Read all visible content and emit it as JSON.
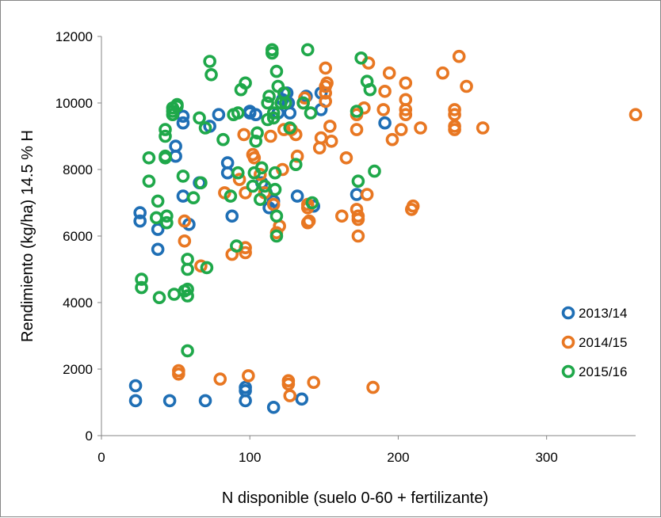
{
  "chart_data": {
    "type": "scatter",
    "title": "",
    "xlabel": "N disponible (suelo 0-60 + fertilizante)",
    "ylabel": "Rendimiento (kg/ha) 14.5 % H",
    "xlim": [
      0,
      360
    ],
    "ylim": [
      0,
      12000
    ],
    "xticks": [
      0,
      100,
      200,
      300
    ],
    "yticks": [
      0,
      2000,
      4000,
      6000,
      8000,
      10000,
      12000
    ],
    "grid": false,
    "legend_position": "bottom-right",
    "series": [
      {
        "name": "2013/14",
        "color": "#1f6fb5",
        "points": [
          [
            23,
            1500
          ],
          [
            23,
            1050
          ],
          [
            26,
            6700
          ],
          [
            26,
            6450
          ],
          [
            38,
            6200
          ],
          [
            38,
            5600
          ],
          [
            46,
            1050
          ],
          [
            50,
            8700
          ],
          [
            50,
            8400
          ],
          [
            55,
            9400
          ],
          [
            55,
            9600
          ],
          [
            55,
            7200
          ],
          [
            59,
            6350
          ],
          [
            66,
            7600
          ],
          [
            70,
            1050
          ],
          [
            73,
            9300
          ],
          [
            79,
            9650
          ],
          [
            85,
            8200
          ],
          [
            85,
            7900
          ],
          [
            88,
            6600
          ],
          [
            97,
            1450
          ],
          [
            97,
            1350
          ],
          [
            97,
            1050
          ],
          [
            100,
            9700
          ],
          [
            100,
            9750
          ],
          [
            104,
            9650
          ],
          [
            108,
            7600
          ],
          [
            111,
            7300
          ],
          [
            113,
            6850
          ],
          [
            116,
            850
          ],
          [
            116,
            7050
          ],
          [
            119,
            9700
          ],
          [
            122,
            10100
          ],
          [
            125,
            10300
          ],
          [
            126,
            10000
          ],
          [
            127,
            9700
          ],
          [
            132,
            7200
          ],
          [
            135,
            1100
          ],
          [
            138,
            10200
          ],
          [
            143,
            6900
          ],
          [
            148,
            10300
          ],
          [
            148,
            9800
          ],
          [
            172,
            7250
          ],
          [
            191,
            9400
          ]
        ]
      },
      {
        "name": "2014/15",
        "color": "#e87722",
        "points": [
          [
            52,
            1950
          ],
          [
            52,
            1850
          ],
          [
            56,
            6450
          ],
          [
            56,
            5850
          ],
          [
            67,
            5100
          ],
          [
            80,
            1700
          ],
          [
            83,
            7300
          ],
          [
            88,
            5450
          ],
          [
            93,
            7700
          ],
          [
            96,
            9050
          ],
          [
            97,
            5650
          ],
          [
            97,
            5500
          ],
          [
            97,
            7300
          ],
          [
            99,
            1800
          ],
          [
            102,
            8450
          ],
          [
            103,
            8350
          ],
          [
            107,
            7850
          ],
          [
            110,
            7300
          ],
          [
            114,
            9000
          ],
          [
            116,
            6950
          ],
          [
            118,
            6100
          ],
          [
            120,
            6300
          ],
          [
            122,
            8000
          ],
          [
            123,
            9200
          ],
          [
            126,
            1650
          ],
          [
            126,
            1550
          ],
          [
            127,
            1200
          ],
          [
            128,
            9200
          ],
          [
            131,
            9050
          ],
          [
            132,
            8400
          ],
          [
            136,
            10000
          ],
          [
            137,
            10150
          ],
          [
            139,
            6950
          ],
          [
            139,
            6850
          ],
          [
            139,
            6400
          ],
          [
            140,
            6450
          ],
          [
            143,
            1600
          ],
          [
            147,
            8650
          ],
          [
            148,
            8950
          ],
          [
            151,
            11050
          ],
          [
            151,
            10500
          ],
          [
            151,
            10300
          ],
          [
            151,
            10050
          ],
          [
            152,
            10600
          ],
          [
            154,
            9300
          ],
          [
            155,
            8850
          ],
          [
            162,
            6600
          ],
          [
            165,
            8350
          ],
          [
            172,
            9200
          ],
          [
            172,
            9650
          ],
          [
            172,
            6800
          ],
          [
            173,
            6600
          ],
          [
            173,
            6500
          ],
          [
            173,
            6000
          ],
          [
            177,
            9850
          ],
          [
            179,
            7250
          ],
          [
            180,
            11200
          ],
          [
            183,
            1450
          ],
          [
            190,
            9800
          ],
          [
            191,
            10350
          ],
          [
            194,
            10900
          ],
          [
            196,
            8900
          ],
          [
            202,
            9200
          ],
          [
            205,
            10600
          ],
          [
            205,
            10100
          ],
          [
            205,
            9800
          ],
          [
            205,
            9650
          ],
          [
            209,
            6800
          ],
          [
            210,
            6900
          ],
          [
            215,
            9250
          ],
          [
            230,
            10900
          ],
          [
            238,
            9800
          ],
          [
            238,
            9650
          ],
          [
            238,
            9300
          ],
          [
            238,
            9200
          ],
          [
            241,
            11400
          ],
          [
            246,
            10500
          ],
          [
            257,
            9250
          ],
          [
            360,
            9650
          ]
        ]
      },
      {
        "name": "2015/16",
        "color": "#1fa84a",
        "points": [
          [
            27,
            4700
          ],
          [
            27,
            4450
          ],
          [
            32,
            8350
          ],
          [
            32,
            7650
          ],
          [
            37,
            6550
          ],
          [
            38,
            7050
          ],
          [
            39,
            4150
          ],
          [
            43,
            9200
          ],
          [
            43,
            9000
          ],
          [
            43,
            8400
          ],
          [
            43,
            8350
          ],
          [
            44,
            6600
          ],
          [
            44,
            6400
          ],
          [
            48,
            9750
          ],
          [
            48,
            9850
          ],
          [
            48,
            9650
          ],
          [
            49,
            4250
          ],
          [
            51,
            9900
          ],
          [
            51,
            9950
          ],
          [
            55,
            7800
          ],
          [
            56,
            4350
          ],
          [
            58,
            5300
          ],
          [
            58,
            5000
          ],
          [
            58,
            4400
          ],
          [
            58,
            4200
          ],
          [
            58,
            2550
          ],
          [
            62,
            7150
          ],
          [
            66,
            9550
          ],
          [
            67,
            7600
          ],
          [
            70,
            9250
          ],
          [
            71,
            5050
          ],
          [
            73,
            11250
          ],
          [
            74,
            10850
          ],
          [
            82,
            8900
          ],
          [
            87,
            7200
          ],
          [
            89,
            9650
          ],
          [
            91,
            5700
          ],
          [
            92,
            9700
          ],
          [
            92,
            7900
          ],
          [
            94,
            10400
          ],
          [
            97,
            10600
          ],
          [
            102,
            7500
          ],
          [
            103,
            7900
          ],
          [
            104,
            8850
          ],
          [
            105,
            9100
          ],
          [
            107,
            7100
          ],
          [
            108,
            8050
          ],
          [
            110,
            7500
          ],
          [
            112,
            9500
          ],
          [
            112,
            10000
          ],
          [
            113,
            10200
          ],
          [
            115,
            11600
          ],
          [
            115,
            11500
          ],
          [
            116,
            9700
          ],
          [
            116,
            9550
          ],
          [
            117,
            7900
          ],
          [
            117,
            7400
          ],
          [
            118,
            6600
          ],
          [
            118,
            6000
          ],
          [
            118,
            10950
          ],
          [
            119,
            10500
          ],
          [
            121,
            10000
          ],
          [
            123,
            10300
          ],
          [
            124,
            10000
          ],
          [
            127,
            9250
          ],
          [
            131,
            8150
          ],
          [
            136,
            10000
          ],
          [
            139,
            11600
          ],
          [
            141,
            9700
          ],
          [
            142,
            7000
          ],
          [
            172,
            9750
          ],
          [
            173,
            7650
          ],
          [
            175,
            11350
          ],
          [
            179,
            10650
          ],
          [
            181,
            10400
          ],
          [
            184,
            7950
          ]
        ]
      }
    ]
  }
}
